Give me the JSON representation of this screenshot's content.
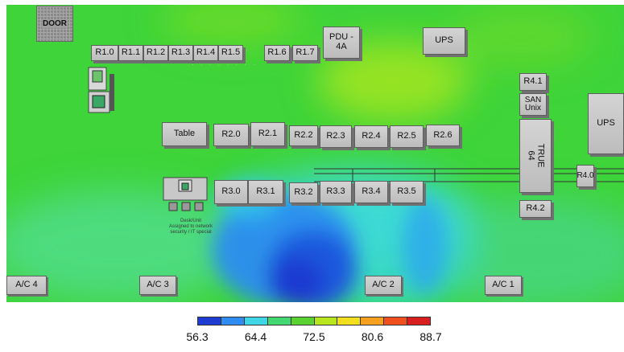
{
  "door_label": "DOOR",
  "racks_row1": [
    "R1.0",
    "R1.1",
    "R1.2",
    "R1.3",
    "R1.4",
    "R1.5",
    "R1.6",
    "R1.7"
  ],
  "pdu_label": "PDU -\n4A",
  "ups_top_label": "UPS",
  "ups_right_label": "UPS",
  "table_label": "Table",
  "racks_row2": [
    "R2.0",
    "R2.1",
    "R2.2",
    "R2.3",
    "R2.4",
    "R2.5",
    "R2.6"
  ],
  "racks_row3": [
    "R3.0",
    "R3.1",
    "R3.2",
    "R3.3",
    "R3.4",
    "R3.5"
  ],
  "r4_labels": {
    "r41": "R4.1",
    "san": "SAN\nUnix",
    "true64": "TRUE\n64",
    "r40": "R4.0",
    "r42": "R4.2"
  },
  "ac_labels": [
    "A/C 4",
    "A/C 3",
    "A/C 2",
    "A/C 1"
  ],
  "workstation_note": "Desk/Unit\nAssigned to network\nsecurity / IT special",
  "colorbar": {
    "ticks": [
      "56.3",
      "64.4",
      "72.5",
      "80.6",
      "88.7"
    ],
    "colors": [
      "#1e3cd2",
      "#2f8cf0",
      "#3fd6e6",
      "#44d873",
      "#5ad232",
      "#b8e61e",
      "#f2e01e",
      "#f5a01e",
      "#f0501e",
      "#d81e1e"
    ]
  }
}
